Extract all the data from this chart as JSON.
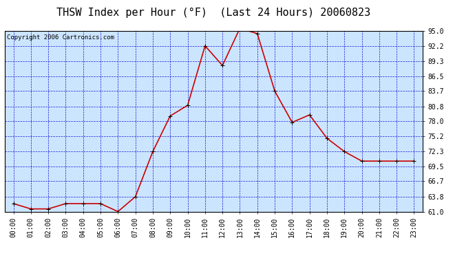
{
  "title": "THSW Index per Hour (°F)  (Last 24 Hours) 20060823",
  "copyright": "Copyright 2006 Cartronics.com",
  "hours": [
    "00:00",
    "01:00",
    "02:00",
    "03:00",
    "04:00",
    "05:00",
    "06:00",
    "07:00",
    "08:00",
    "09:00",
    "10:00",
    "11:00",
    "12:00",
    "13:00",
    "14:00",
    "15:00",
    "16:00",
    "17:00",
    "18:00",
    "19:00",
    "20:00",
    "21:00",
    "22:00",
    "23:00"
  ],
  "values": [
    62.5,
    61.5,
    61.5,
    62.5,
    62.5,
    62.5,
    61.0,
    63.8,
    72.3,
    79.0,
    81.0,
    92.2,
    88.5,
    95.5,
    94.5,
    83.7,
    77.8,
    79.2,
    74.8,
    72.3,
    70.5,
    70.5,
    70.5,
    70.5
  ],
  "line_color": "#cc0000",
  "marker": "+",
  "marker_size": 5,
  "bg_color": "#cce5ff",
  "grid_color": "#0000cc",
  "title_color": "#000000",
  "title_fontsize": 11,
  "copyright_fontsize": 6.5,
  "tick_fontsize": 7,
  "ylim": [
    61.0,
    95.0
  ],
  "yticks": [
    61.0,
    63.8,
    66.7,
    69.5,
    72.3,
    75.2,
    78.0,
    80.8,
    83.7,
    86.5,
    89.3,
    92.2,
    95.0
  ]
}
